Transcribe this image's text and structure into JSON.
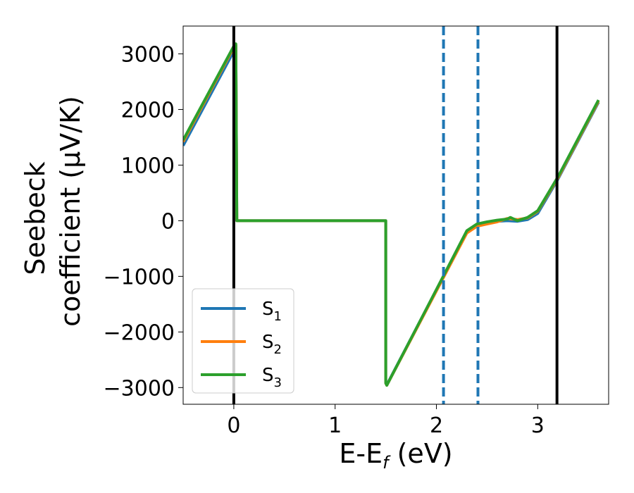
{
  "chart_data": {
    "type": "line",
    "title": "",
    "xlabel": {
      "base": "E-E",
      "sub": "f",
      "rest": " (eV)"
    },
    "ylabel": {
      "line1": "Seebeck",
      "line2": "coefficient  (μV/K)"
    },
    "xlim": [
      -0.5,
      3.7
    ],
    "ylim": [
      -3300,
      3500
    ],
    "xticks": [
      0,
      1,
      2,
      3
    ],
    "xtick_labels": [
      "0",
      "1",
      "2",
      "3"
    ],
    "yticks": [
      -3000,
      -2000,
      -1000,
      0,
      1000,
      2000,
      3000
    ],
    "ytick_labels": [
      "−3000",
      "−2000",
      "−1000",
      "0",
      "1000",
      "2000",
      "3000"
    ],
    "grid": false,
    "legend_position": "lower-left",
    "vlines": [
      {
        "x": 0.0,
        "style": "solid",
        "color": "#000000"
      },
      {
        "x": 3.19,
        "style": "solid",
        "color": "#000000"
      },
      {
        "x": 2.07,
        "style": "dashed",
        "color": "#1f77b4"
      },
      {
        "x": 2.41,
        "style": "dashed",
        "color": "#1f77b4"
      }
    ],
    "series": [
      {
        "name": "S1",
        "label_base": "S",
        "label_sub": "1",
        "color": "#1f77b4",
        "x": [
          -0.5,
          0.0,
          0.02,
          0.03,
          1.5,
          1.5,
          1.51,
          2.3,
          2.4,
          2.5,
          2.6,
          2.7,
          2.8,
          2.9,
          3.0,
          3.2,
          3.6
        ],
        "y": [
          1350,
          3050,
          3150,
          0,
          0,
          -2900,
          -2950,
          -200,
          -80,
          -40,
          -10,
          0,
          -10,
          20,
          130,
          750,
          2130
        ]
      },
      {
        "name": "S2",
        "label_base": "S",
        "label_sub": "2",
        "color": "#ff7f0e",
        "x": [
          -0.5,
          0.0,
          0.02,
          0.03,
          1.5,
          1.5,
          1.51,
          2.3,
          2.4,
          2.5,
          2.6,
          2.7,
          2.8,
          2.9,
          3.0,
          3.2,
          3.6
        ],
        "y": [
          1420,
          3120,
          3160,
          0,
          0,
          -2920,
          -2960,
          -220,
          -100,
          -60,
          -20,
          40,
          20,
          50,
          170,
          770,
          2150
        ]
      },
      {
        "name": "S3",
        "label_base": "S",
        "label_sub": "3",
        "color": "#2ca02c",
        "x": [
          -0.5,
          0.0,
          0.02,
          0.03,
          1.5,
          1.5,
          1.51,
          2.3,
          2.4,
          2.5,
          2.6,
          2.7,
          2.73,
          2.8,
          2.9,
          3.0,
          3.2,
          3.6
        ],
        "y": [
          1450,
          3140,
          3180,
          0,
          0,
          -2920,
          -2960,
          -180,
          -60,
          -20,
          10,
          30,
          60,
          0,
          60,
          180,
          790,
          2170
        ]
      }
    ]
  }
}
